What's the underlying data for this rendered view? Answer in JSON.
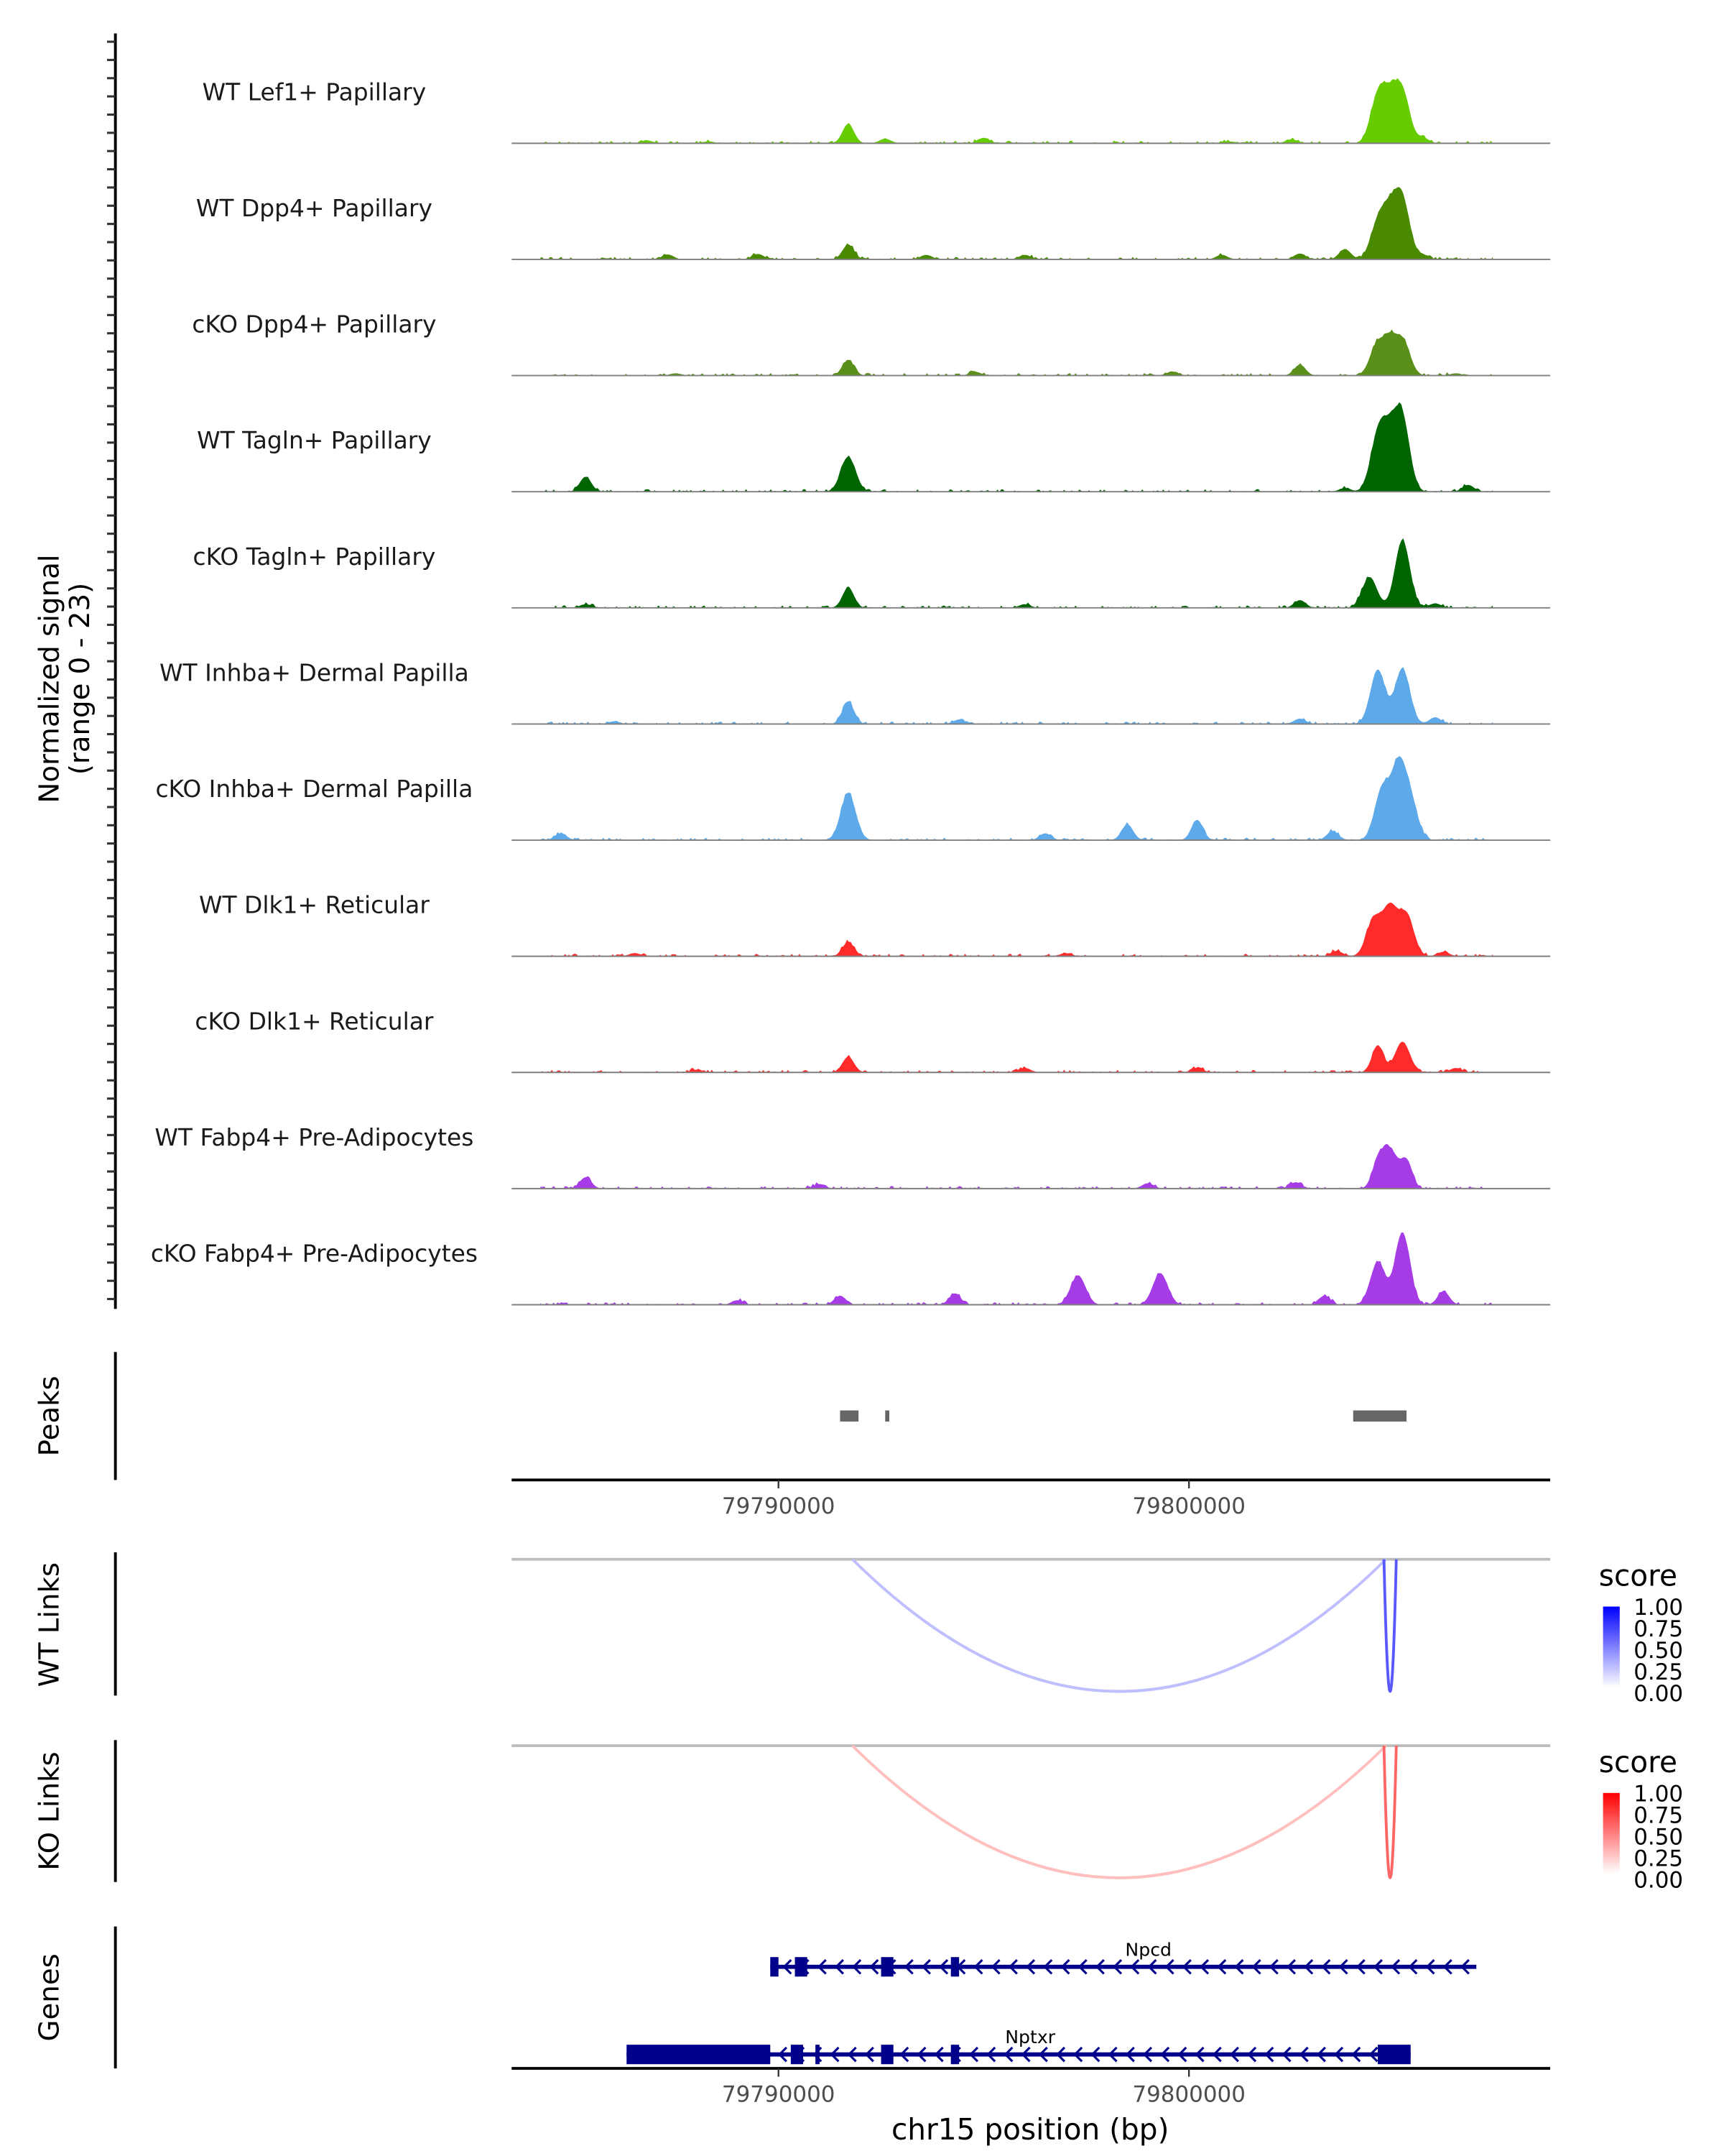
{
  "chart_data": {
    "type": "area",
    "title": "",
    "ylabel": "Normalized signal\n(range 0 - 23)",
    "ylabel_lines": [
      "Normalized signal",
      "(range 0 - 23)"
    ],
    "ylim": [
      0,
      23
    ],
    "xlabel": "chr15 position (bp)",
    "xlim": [
      79783500,
      79808800
    ],
    "x_ticks": [
      79790000,
      79800000
    ],
    "x_tick_labels": [
      "79790000",
      "79800000"
    ],
    "coverage_tracks": [
      {
        "name": "WT Lef1+ Papillary",
        "color": "#66CC00",
        "peaks": [
          [
            79786800,
            0.6
          ],
          [
            79788300,
            0.4
          ],
          [
            79791700,
            4.3
          ],
          [
            79792600,
            1.0
          ],
          [
            79795000,
            1.2
          ],
          [
            79801000,
            0.4
          ],
          [
            79802500,
            0.9
          ],
          [
            79804600,
            10.0
          ],
          [
            79804900,
            8.3
          ],
          [
            79805200,
            10.8
          ],
          [
            79805700,
            1.2
          ]
        ]
      },
      {
        "name": "WT Dpp4+ Papillary",
        "color": "#4A8A00",
        "peaks": [
          [
            79787300,
            1.1
          ],
          [
            79789500,
            1.2
          ],
          [
            79791700,
            3.3
          ],
          [
            79793600,
            1.0
          ],
          [
            79796000,
            1.0
          ],
          [
            79800800,
            1.0
          ],
          [
            79802700,
            1.3
          ],
          [
            79803800,
            2.3
          ],
          [
            79804600,
            7.7
          ],
          [
            79804900,
            9.1
          ],
          [
            79805200,
            12.7
          ],
          [
            79805700,
            1.0
          ]
        ]
      },
      {
        "name": "cKO Dpp4+ Papillary",
        "color": "#5A8F1A",
        "peaks": [
          [
            79787500,
            0.5
          ],
          [
            79791700,
            3.5
          ],
          [
            79794800,
            0.8
          ],
          [
            79799600,
            0.9
          ],
          [
            79802700,
            2.4
          ],
          [
            79804600,
            7.3
          ],
          [
            79804900,
            5.8
          ],
          [
            79805200,
            8.0
          ],
          [
            79806500,
            0.5
          ]
        ]
      },
      {
        "name": "WT Tagln+ Papillary",
        "color": "#006400",
        "peaks": [
          [
            79785300,
            3.3
          ],
          [
            79791700,
            7.7
          ],
          [
            79803800,
            0.8
          ],
          [
            79804600,
            12.0
          ],
          [
            79804900,
            10.5
          ],
          [
            79805200,
            15.5
          ],
          [
            79806800,
            1.5
          ]
        ]
      },
      {
        "name": "cKO Tagln+ Papillary",
        "color": "#006400",
        "peaks": [
          [
            79785300,
            0.8
          ],
          [
            79791700,
            4.5
          ],
          [
            79796000,
            0.8
          ],
          [
            79802700,
            1.7
          ],
          [
            79804400,
            6.8
          ],
          [
            79805200,
            15.0
          ],
          [
            79806000,
            1.0
          ]
        ]
      },
      {
        "name": "WT Inhba+ Dermal Papilla",
        "color": "#5DA9E9",
        "peaks": [
          [
            79786000,
            0.6
          ],
          [
            79791700,
            5.0
          ],
          [
            79794400,
            1.0
          ],
          [
            79802700,
            1.2
          ],
          [
            79804600,
            12.0
          ],
          [
            79805200,
            12.3
          ],
          [
            79806000,
            1.5
          ]
        ]
      },
      {
        "name": "cKO Inhba+ Dermal Papilla",
        "color": "#5DA9E9",
        "peaks": [
          [
            79784700,
            1.5
          ],
          [
            79791700,
            10.5
          ],
          [
            79796500,
            1.5
          ],
          [
            79798500,
            3.5
          ],
          [
            79800200,
            4.5
          ],
          [
            79803500,
            2.0
          ],
          [
            79804700,
            11.0
          ],
          [
            79805100,
            15.5
          ],
          [
            79805400,
            8.0
          ]
        ]
      },
      {
        "name": "WT Dlk1+ Reticular",
        "color": "#FF2A2A",
        "peaks": [
          [
            79786500,
            0.7
          ],
          [
            79791700,
            3.2
          ],
          [
            79797000,
            0.7
          ],
          [
            79803600,
            1.2
          ],
          [
            79804500,
            8.0
          ],
          [
            79804900,
            10.4
          ],
          [
            79805300,
            9.0
          ],
          [
            79806200,
            1.0
          ]
        ]
      },
      {
        "name": "cKO Dlk1+ Reticular",
        "color": "#FF2A2A",
        "peaks": [
          [
            79788000,
            0.6
          ],
          [
            79791700,
            3.5
          ],
          [
            79796000,
            1.0
          ],
          [
            79800200,
            1.0
          ],
          [
            79804600,
            6.0
          ],
          [
            79805200,
            6.8
          ],
          [
            79806500,
            1.0
          ]
        ]
      },
      {
        "name": "WT Fabp4+ Pre-Adipocytes",
        "color": "#A63CE6",
        "peaks": [
          [
            79785300,
            2.5
          ],
          [
            79791000,
            1.0
          ],
          [
            79799000,
            1.2
          ],
          [
            79802600,
            1.4
          ],
          [
            79804600,
            5.5
          ],
          [
            79804900,
            8.5
          ],
          [
            79805300,
            6.0
          ]
        ]
      },
      {
        "name": "cKO Fabp4+ Pre-Adipocytes",
        "color": "#A63CE6",
        "peaks": [
          [
            79789000,
            1.0
          ],
          [
            79791500,
            2.0
          ],
          [
            79794300,
            2.5
          ],
          [
            79797300,
            6.5
          ],
          [
            79799300,
            7.0
          ],
          [
            79803300,
            2.0
          ],
          [
            79804600,
            9.5
          ],
          [
            79805200,
            16.0
          ],
          [
            79806200,
            3.0
          ]
        ]
      }
    ],
    "peaks_track": {
      "label": "Peaks",
      "color": "#666666",
      "regions": [
        [
          79791500,
          79791950
        ],
        [
          79792600,
          79792700
        ],
        [
          79804000,
          79805300
        ]
      ]
    },
    "links_tracks": [
      {
        "label": "WT Links",
        "legend_title": "score",
        "low_color": "#FFFFFF",
        "high_color": "#0000FF",
        "links": [
          {
            "start": 79791800,
            "end": 79804800,
            "score": 0.25
          },
          {
            "start": 79804750,
            "end": 79805050,
            "score": 0.65
          }
        ]
      },
      {
        "label": "KO Links",
        "legend_title": "score",
        "low_color": "#FFFFFF",
        "high_color": "#FF0000",
        "links": [
          {
            "start": 79791800,
            "end": 79804800,
            "score": 0.25
          },
          {
            "start": 79804750,
            "end": 79805050,
            "score": 0.6
          }
        ]
      }
    ],
    "legend_ticks": [
      "1.00",
      "0.75",
      "0.50",
      "0.25",
      "0.00"
    ],
    "legend_placement": "right",
    "genes_track": {
      "label": "Genes",
      "color": "#00008B",
      "strand": "-",
      "genes": [
        {
          "name": "Npcd",
          "start": 79789800,
          "end": 79807000,
          "exons": [
            [
              79789800,
              79790000
            ],
            [
              79790400,
              79790700
            ],
            [
              79792500,
              79792800
            ],
            [
              79794200,
              79794400
            ]
          ]
        },
        {
          "name": "Nptxr",
          "start": 79786300,
          "end": 79805400,
          "exons": [
            [
              79786300,
              79789800
            ],
            [
              79790300,
              79790600
            ],
            [
              79790900,
              79791000
            ],
            [
              79792500,
              79792800
            ],
            [
              79794200,
              79794400
            ],
            [
              79804600,
              79805400
            ]
          ]
        }
      ]
    }
  }
}
